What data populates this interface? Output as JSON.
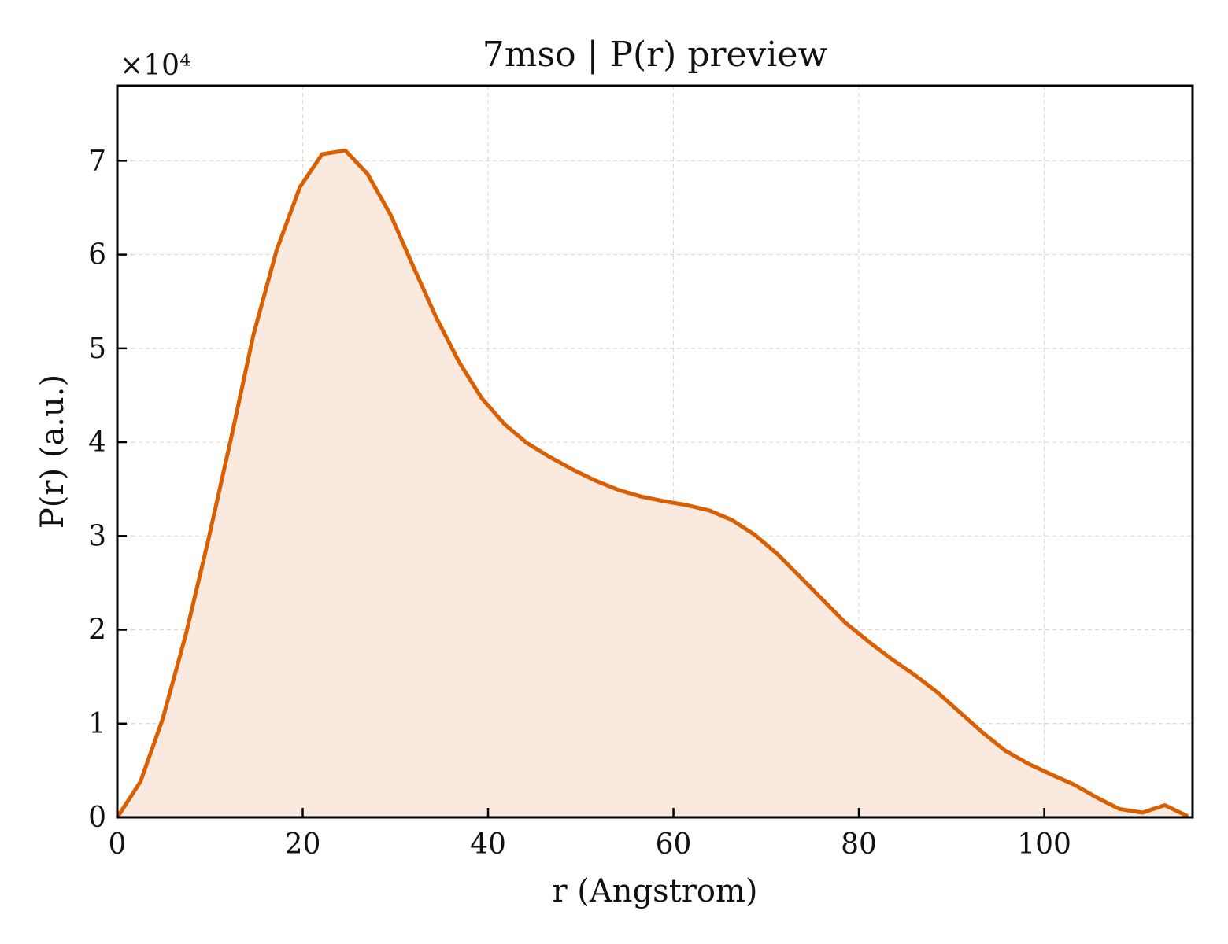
{
  "chart_data": {
    "type": "area",
    "title": "7mso | P(r) preview",
    "xlabel": "r (Angstrom)",
    "ylabel": "P(r) (a.u.)",
    "y_multiplier": "×10⁴",
    "xlim": [
      0,
      116
    ],
    "ylim": [
      0,
      7.8
    ],
    "x_ticks": [
      "0",
      "20",
      "40",
      "60",
      "80",
      "100"
    ],
    "y_ticks": [
      "0",
      "1",
      "2",
      "3",
      "4",
      "5",
      "6",
      "7"
    ],
    "grid": true,
    "line_color": "#d95f02",
    "fill_color": "#f9e9de",
    "series": [
      {
        "x": [
          0,
          2.5,
          4.9,
          7.4,
          9.8,
          12.3,
          14.7,
          17.2,
          19.7,
          22.1,
          24.6,
          27.0,
          29.5,
          31.9,
          34.4,
          36.9,
          39.3,
          41.8,
          44.2,
          46.7,
          49.1,
          51.6,
          54.1,
          56.5,
          59.0,
          61.4,
          63.9,
          66.3,
          68.8,
          71.3,
          73.7,
          76.2,
          78.6,
          81.1,
          83.5,
          86.0,
          88.5,
          90.9,
          93.4,
          95.8,
          98.3,
          100.7,
          103.2,
          105.7,
          108.1,
          110.6,
          113.0,
          115.5
        ],
        "values": [
          0,
          0.38,
          1.05,
          1.95,
          2.95,
          4.05,
          5.15,
          6.05,
          6.72,
          7.07,
          7.11,
          6.86,
          6.42,
          5.88,
          5.33,
          4.85,
          4.47,
          4.19,
          3.99,
          3.84,
          3.71,
          3.59,
          3.49,
          3.42,
          3.37,
          3.33,
          3.27,
          3.17,
          3.01,
          2.8,
          2.56,
          2.31,
          2.07,
          1.87,
          1.69,
          1.52,
          1.33,
          1.12,
          0.9,
          0.71,
          0.57,
          0.46,
          0.35,
          0.21,
          0.09,
          0.05,
          0.13,
          0.01
        ]
      }
    ]
  }
}
